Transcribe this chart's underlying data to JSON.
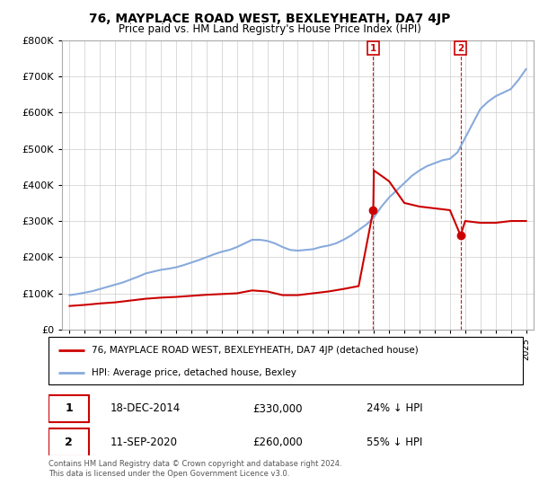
{
  "title": "76, MAYPLACE ROAD WEST, BEXLEYHEATH, DA7 4JP",
  "subtitle": "Price paid vs. HM Land Registry's House Price Index (HPI)",
  "hpi_years": [
    1995,
    1995.5,
    1996,
    1996.5,
    1997,
    1997.5,
    1998,
    1998.5,
    1999,
    1999.5,
    2000,
    2000.5,
    2001,
    2001.5,
    2002,
    2002.5,
    2003,
    2003.5,
    2004,
    2004.5,
    2005,
    2005.5,
    2006,
    2006.5,
    2007,
    2007.5,
    2008,
    2008.5,
    2009,
    2009.5,
    2010,
    2010.5,
    2011,
    2011.5,
    2012,
    2012.5,
    2013,
    2013.5,
    2014,
    2014.5,
    2015,
    2015.5,
    2016,
    2016.5,
    2017,
    2017.5,
    2018,
    2018.5,
    2019,
    2019.5,
    2020,
    2020.5,
    2021,
    2021.5,
    2022,
    2022.5,
    2023,
    2023.5,
    2024,
    2024.5,
    2025
  ],
  "hpi_values": [
    95000,
    98000,
    102000,
    106000,
    112000,
    118000,
    124000,
    130000,
    138000,
    146000,
    155000,
    160000,
    165000,
    168000,
    172000,
    178000,
    185000,
    192000,
    200000,
    208000,
    215000,
    220000,
    228000,
    238000,
    248000,
    248000,
    245000,
    238000,
    228000,
    220000,
    218000,
    220000,
    222000,
    228000,
    232000,
    238000,
    248000,
    260000,
    275000,
    290000,
    310000,
    340000,
    365000,
    385000,
    405000,
    425000,
    440000,
    452000,
    460000,
    468000,
    472000,
    490000,
    530000,
    570000,
    610000,
    630000,
    645000,
    655000,
    665000,
    690000,
    720000
  ],
  "price_years": [
    1995,
    1996,
    1997,
    1998,
    1999,
    2000,
    2001,
    2002,
    2003,
    2004,
    2005,
    2006,
    2007,
    2008,
    2009,
    2010,
    2011,
    2012,
    2013,
    2014,
    2014.96,
    2015,
    2016,
    2017,
    2018,
    2019,
    2020,
    2020.7,
    2021,
    2022,
    2023,
    2024,
    2025
  ],
  "price_values": [
    65000,
    68000,
    72000,
    75000,
    80000,
    85000,
    88000,
    90000,
    93000,
    96000,
    98000,
    100000,
    108000,
    105000,
    95000,
    95000,
    100000,
    105000,
    112000,
    120000,
    330000,
    440000,
    410000,
    350000,
    340000,
    335000,
    330000,
    260000,
    300000,
    295000,
    295000,
    300000,
    300000
  ],
  "sale_points": [
    {
      "year": 2014.96,
      "price": 330000,
      "label": "1"
    },
    {
      "year": 2020.7,
      "price": 260000,
      "label": "2"
    }
  ],
  "hpi_color": "#88aadd",
  "price_color": "#cc0000",
  "ylim": [
    0,
    800000
  ],
  "yticks": [
    0,
    100000,
    200000,
    300000,
    400000,
    500000,
    600000,
    700000,
    800000
  ],
  "xlim": [
    1994.5,
    2025.5
  ],
  "xticks": [
    1995,
    1996,
    1997,
    1998,
    1999,
    2000,
    2001,
    2002,
    2003,
    2004,
    2005,
    2006,
    2007,
    2008,
    2009,
    2010,
    2011,
    2012,
    2013,
    2014,
    2015,
    2016,
    2017,
    2018,
    2019,
    2020,
    2021,
    2022,
    2023,
    2024,
    2025
  ],
  "legend_price_label": "76, MAYPLACE ROAD WEST, BEXLEYHEATH, DA7 4JP (detached house)",
  "legend_hpi_label": "HPI: Average price, detached house, Bexley",
  "annotation1_label": "1",
  "annotation1_date": "18-DEC-2014",
  "annotation1_price": "£330,000",
  "annotation1_hpi": "24% ↓ HPI",
  "annotation2_label": "2",
  "annotation2_date": "11-SEP-2020",
  "annotation2_price": "£260,000",
  "annotation2_hpi": "55% ↓ HPI",
  "footer": "Contains HM Land Registry data © Crown copyright and database right 2024.\nThis data is licensed under the Open Government Licence v3.0.",
  "bg_color": "#ffffff",
  "grid_color": "#cccccc",
  "marker_color": "#cc0000"
}
